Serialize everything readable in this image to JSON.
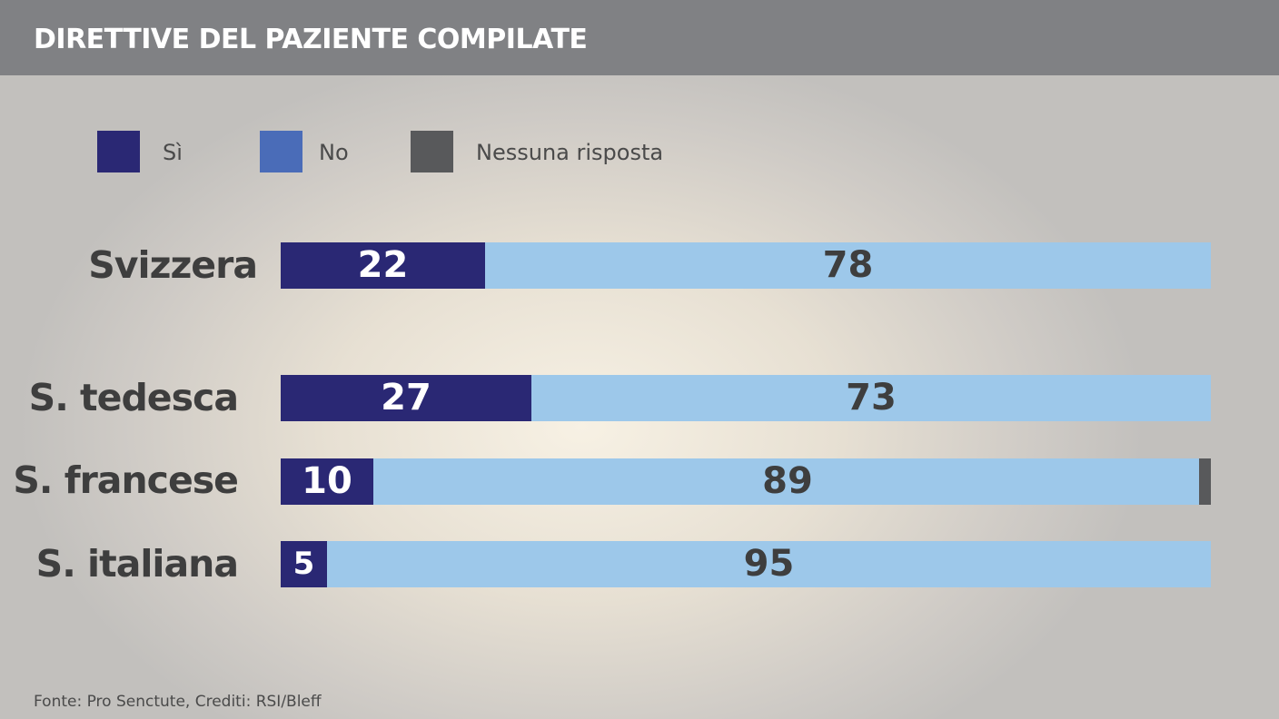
{
  "header": {
    "title": "DIRETTIVE DEL PAZIENTE COMPILATE"
  },
  "colors": {
    "header_bg": "#808184",
    "yes": "#2a2874",
    "no_legend": "#4a6cb8",
    "no_bar": "#9dc8ea",
    "no_answer": "#58595b",
    "yes_label_text": "#ffffff",
    "no_label_text": "#3e3e3e"
  },
  "legend": [
    {
      "key": "yes",
      "label": "Sì",
      "color": "#2a2874"
    },
    {
      "key": "no",
      "label": "No",
      "color": "#4a6cb8"
    },
    {
      "key": "no_answer",
      "label": "Nessuna risposta",
      "color": "#58595b"
    }
  ],
  "chart_data": {
    "type": "bar",
    "orientation": "horizontal",
    "stacked": true,
    "title": "DIRETTIVE DEL PAZIENTE COMPILATE",
    "categories": [
      "Svizzera",
      "S. tedesca",
      "S. francese",
      "S. italiana"
    ],
    "series": [
      {
        "name": "Sì",
        "values": [
          22,
          27,
          10,
          5
        ],
        "color": "#2a2874"
      },
      {
        "name": "No",
        "values": [
          78,
          73,
          89,
          95
        ],
        "color": "#9dc8ea"
      },
      {
        "name": "Nessuna risposta",
        "values": [
          0,
          0,
          1,
          0
        ],
        "color": "#58595b"
      }
    ],
    "xlim": [
      0,
      100
    ],
    "grid": false,
    "legend_position": "top-left"
  },
  "footer": {
    "text": "Fonte:  Pro Senctute,  Crediti: RSI/Bleff"
  }
}
